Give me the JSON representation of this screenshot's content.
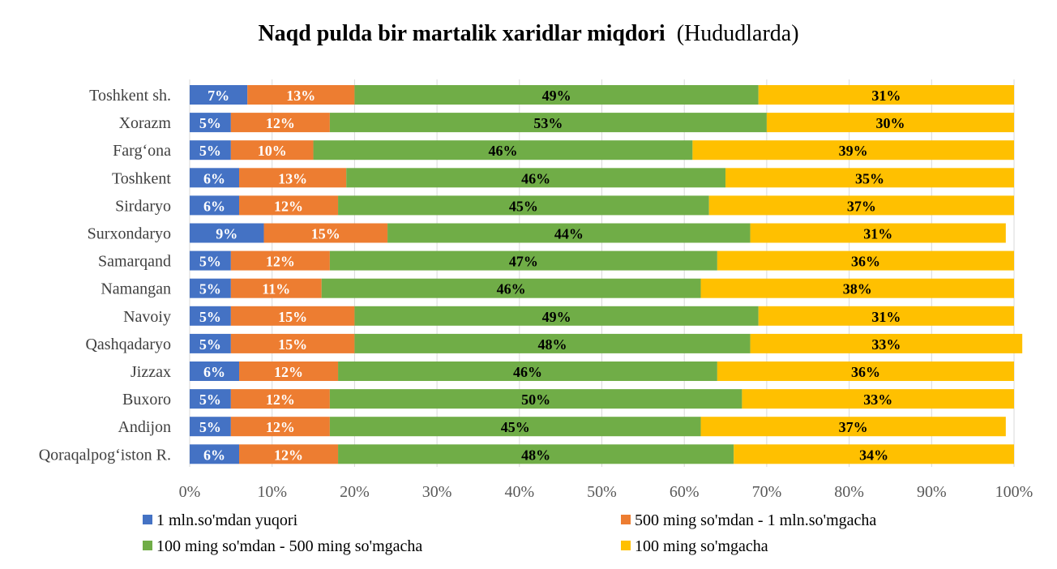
{
  "chart_data": {
    "type": "bar",
    "orientation": "horizontal",
    "stacked": "percent",
    "title": "Naqd pulda bir martalik xaridlar miqdori",
    "subtitle": "(Hududlarda)",
    "categories": [
      "Toshkent sh.",
      "Xorazm",
      "Farg‘ona",
      "Toshkent",
      "Sirdaryo",
      "Surxondaryo",
      "Samarqand",
      "Namangan",
      "Navoiy",
      "Qashqadaryo",
      "Jizzax",
      "Buxoro",
      "Andijon",
      "Qoraqalpog‘iston R."
    ],
    "series": [
      {
        "name": "1 mln.so'mdan yuqori",
        "color": "#4472C4",
        "label_color": "#FFFFFF",
        "values": [
          7,
          5,
          5,
          6,
          6,
          9,
          5,
          5,
          5,
          5,
          6,
          5,
          5,
          6
        ]
      },
      {
        "name": "500 ming so'mdan - 1 mln.so'mgacha",
        "color": "#ED7D31",
        "label_color": "#FFFFFF",
        "values": [
          13,
          12,
          10,
          13,
          12,
          15,
          12,
          11,
          15,
          15,
          12,
          12,
          12,
          12
        ]
      },
      {
        "name": "100 ming so'mdan -  500 ming so'mgacha",
        "color": "#70AD47",
        "label_color": "#000000",
        "values": [
          49,
          53,
          46,
          46,
          45,
          44,
          47,
          46,
          49,
          48,
          46,
          50,
          45,
          48
        ]
      },
      {
        "name": "100 ming so'mgacha",
        "color": "#FFC000",
        "label_color": "#000000",
        "values": [
          31,
          30,
          39,
          35,
          37,
          31,
          36,
          38,
          31,
          33,
          36,
          33,
          37,
          34
        ]
      }
    ],
    "xlim": [
      0,
      100
    ],
    "x_ticks": [
      "0%",
      "10%",
      "20%",
      "30%",
      "40%",
      "50%",
      "60%",
      "70%",
      "80%",
      "90%",
      "100%"
    ],
    "value_suffix": "%",
    "grid": true,
    "legend": "bottom"
  }
}
